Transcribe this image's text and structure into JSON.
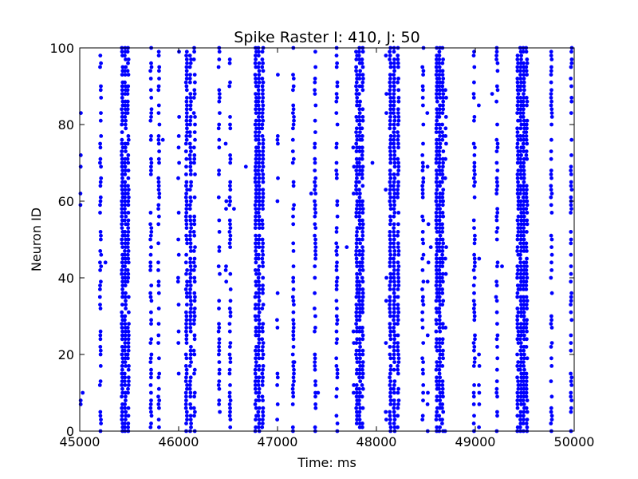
{
  "chart_data": {
    "type": "scatter",
    "title": "Spike Raster I: 410, J: 50",
    "xlabel": "Time: ms",
    "ylabel": "Neuron ID",
    "xlim": [
      45000,
      50000
    ],
    "ylim": [
      0,
      100
    ],
    "xticks": [
      45000,
      46000,
      47000,
      48000,
      49000,
      50000
    ],
    "yticks": [
      0,
      20,
      40,
      60,
      80,
      100
    ],
    "xtick_labels": [
      "45000",
      "46000",
      "47000",
      "48000",
      "49000",
      "50000"
    ],
    "ytick_labels": [
      "0",
      "20",
      "40",
      "60",
      "80",
      "100"
    ],
    "grid": false,
    "marker_color": "#0000ff",
    "burst_times": [
      45010,
      45210,
      45430,
      45460,
      45490,
      45720,
      45800,
      46000,
      46080,
      46120,
      46160,
      46410,
      46480,
      46520,
      46780,
      46810,
      46850,
      47000,
      47160,
      47380,
      47600,
      47770,
      47800,
      47830,
      47860,
      48100,
      48140,
      48180,
      48220,
      48470,
      48520,
      48610,
      48640,
      48670,
      48700,
      48990,
      49040,
      49220,
      49430,
      49460,
      49490,
      49520,
      49770,
      49970
    ],
    "burst_density": [
      0.08,
      0.5,
      0.9,
      0.9,
      0.6,
      0.5,
      0.5,
      0.12,
      0.8,
      0.8,
      0.5,
      0.5,
      0.08,
      0.5,
      0.85,
      0.9,
      0.85,
      0.15,
      0.5,
      0.5,
      0.5,
      0.08,
      0.85,
      0.85,
      0.6,
      0.08,
      0.9,
      0.9,
      0.7,
      0.5,
      0.08,
      0.9,
      0.9,
      0.7,
      0.1,
      0.5,
      0.1,
      0.5,
      0.8,
      0.9,
      0.9,
      0.6,
      0.5,
      0.5
    ],
    "stray_points": [
      [
        45010,
        69
      ],
      [
        45010,
        7
      ],
      [
        45010,
        8
      ],
      [
        45030,
        10
      ],
      [
        45260,
        44
      ],
      [
        45840,
        76
      ],
      [
        46680,
        69
      ],
      [
        46560,
        58
      ],
      [
        46480,
        58
      ],
      [
        47170,
        18
      ],
      [
        47410,
        10
      ],
      [
        47700,
        48
      ],
      [
        47960,
        70
      ],
      [
        48550,
        48
      ],
      [
        48520,
        10
      ],
      [
        49270,
        43
      ],
      [
        49210,
        35
      ],
      [
        49170,
        88
      ],
      [
        47340,
        62
      ],
      [
        46850,
        37
      ]
    ]
  }
}
